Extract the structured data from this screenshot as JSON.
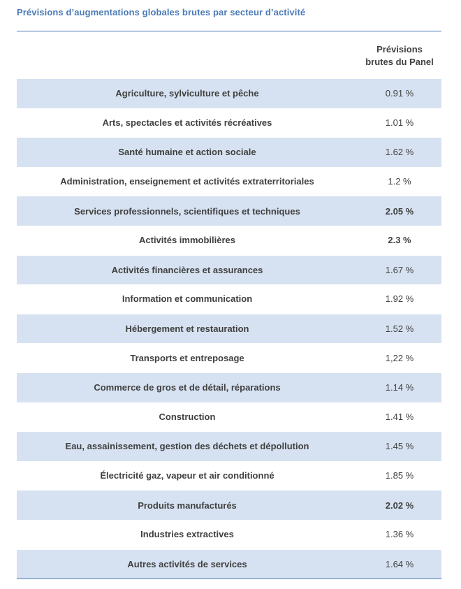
{
  "title": "Prévisions d’augmentations globales brutes par secteur d’activité",
  "header": {
    "sector": "",
    "value_line1": "Prévisions",
    "value_line2": "brutes du Panel"
  },
  "rows": [
    {
      "sector": "Agriculture, sylviculture et pêche",
      "value": "0.91 %",
      "bold": false
    },
    {
      "sector": "Arts, spectacles et activités récréatives",
      "value": "1.01 %",
      "bold": false
    },
    {
      "sector": "Santé humaine et action sociale",
      "value": "1.62 %",
      "bold": false
    },
    {
      "sector": "Administration, enseignement et activités extraterritoriales",
      "value": "1.2 %",
      "bold": false
    },
    {
      "sector": "Services professionnels, scientifiques et techniques",
      "value": "2.05 %",
      "bold": true
    },
    {
      "sector": "Activités immobilières",
      "value": "2.3 %",
      "bold": true
    },
    {
      "sector": "Activités financières et assurances",
      "value": "1.67 %",
      "bold": false
    },
    {
      "sector": "Information et communication",
      "value": "1.92 %",
      "bold": false
    },
    {
      "sector": "Hébergement et restauration",
      "value": "1.52 %",
      "bold": false
    },
    {
      "sector": "Transports et entreposage",
      "value": "1,22 %",
      "bold": false
    },
    {
      "sector": "Commerce de gros et de détail, réparations",
      "value": "1.14 %",
      "bold": false
    },
    {
      "sector": "Construction",
      "value": "1.41 %",
      "bold": false
    },
    {
      "sector": "Eau, assainissement, gestion des déchets et dépollution",
      "value": "1.45 %",
      "bold": false
    },
    {
      "sector": "Électricité gaz, vapeur et air conditionné",
      "value": "1.85 %",
      "bold": false
    },
    {
      "sector": "Produits manufacturés",
      "value": "2.02 %",
      "bold": true
    },
    {
      "sector": "Industries extractives",
      "value": "1.36 %",
      "bold": false
    },
    {
      "sector": "Autres activités de services",
      "value": "1.64 %",
      "bold": false
    }
  ],
  "colors": {
    "title": "#4a7ab5",
    "shaded_row": "#d6e2f1",
    "rule": "#4a7ab5",
    "text": "#404040"
  }
}
